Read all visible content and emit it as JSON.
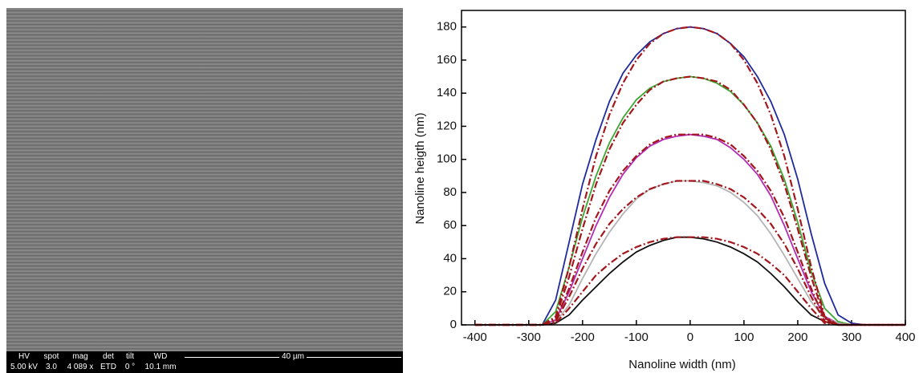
{
  "chart_data": {
    "type": "line",
    "x": [
      -400,
      -375,
      -350,
      -325,
      -300,
      -275,
      -250,
      -225,
      -200,
      -175,
      -150,
      -125,
      -100,
      -75,
      -50,
      -25,
      0,
      25,
      50,
      75,
      100,
      125,
      150,
      175,
      200,
      225,
      250,
      275,
      300,
      325,
      350,
      375,
      400
    ],
    "series": [
      {
        "color": "#1f2a9e",
        "style": "solid",
        "values": [
          0,
          0,
          0,
          0,
          0,
          0,
          15,
          50,
          85,
          112,
          135,
          152,
          163,
          171,
          176,
          179,
          180,
          179,
          176,
          170,
          162,
          150,
          135,
          115,
          88,
          55,
          25,
          6,
          1,
          0,
          0,
          0,
          0
        ]
      },
      {
        "color": "#3aa832",
        "style": "solid",
        "values": [
          0,
          0,
          0,
          0,
          0,
          0,
          8,
          35,
          65,
          90,
          110,
          125,
          136,
          143,
          147,
          149,
          150,
          149,
          146,
          141,
          133,
          122,
          108,
          88,
          62,
          32,
          10,
          2,
          0,
          0,
          0,
          0,
          0
        ]
      },
      {
        "color": "#b42cb4",
        "style": "solid",
        "values": [
          0,
          0,
          0,
          0,
          0,
          0,
          3,
          20,
          40,
          60,
          77,
          91,
          101,
          108,
          112,
          114,
          115,
          114,
          112,
          107,
          100,
          91,
          78,
          60,
          40,
          20,
          5,
          1,
          0,
          0,
          0,
          0,
          0
        ]
      },
      {
        "color": "#b4b4b4",
        "style": "solid",
        "values": [
          0,
          0,
          0,
          0,
          0,
          0,
          2,
          12,
          28,
          43,
          56,
          67,
          76,
          82,
          85,
          87,
          87,
          86,
          84,
          80,
          74,
          66,
          55,
          42,
          28,
          14,
          4,
          1,
          0,
          0,
          0,
          0,
          0
        ]
      },
      {
        "color": "#111111",
        "style": "solid",
        "values": [
          0,
          0,
          0,
          0,
          0,
          0,
          1,
          6,
          15,
          23,
          31,
          38,
          44,
          48,
          51,
          53,
          53,
          52,
          50,
          47,
          43,
          38,
          31,
          23,
          14,
          6,
          2,
          0,
          0,
          0,
          0,
          0,
          0
        ]
      },
      {
        "color": "#a3161b",
        "style": "dashdot",
        "values": [
          0,
          0,
          0,
          0,
          0,
          0,
          5,
          35,
          70,
          102,
          127,
          146,
          160,
          170,
          176,
          179,
          180,
          179,
          176,
          170,
          160,
          146,
          127,
          102,
          70,
          35,
          5,
          0,
          0,
          0,
          0,
          0,
          0
        ]
      },
      {
        "color": "#a3161b",
        "style": "dashdot",
        "values": [
          0,
          0,
          0,
          0,
          0,
          0,
          4,
          29,
          58,
          85,
          106,
          122,
          133,
          142,
          147,
          149,
          150,
          149,
          147,
          142,
          133,
          122,
          106,
          85,
          58,
          29,
          4,
          0,
          0,
          0,
          0,
          0,
          0
        ]
      },
      {
        "color": "#a3161b",
        "style": "dashdot",
        "values": [
          0,
          0,
          0,
          0,
          0,
          0,
          3,
          22,
          44,
          65,
          81,
          93,
          102,
          109,
          113,
          115,
          115,
          115,
          113,
          109,
          102,
          93,
          81,
          65,
          44,
          22,
          3,
          0,
          0,
          0,
          0,
          0,
          0
        ]
      },
      {
        "color": "#a3161b",
        "style": "dashdot",
        "values": [
          0,
          0,
          0,
          0,
          0,
          0,
          2,
          17,
          34,
          49,
          61,
          70,
          77,
          82,
          85,
          87,
          87,
          87,
          85,
          82,
          77,
          70,
          61,
          49,
          34,
          17,
          2,
          0,
          0,
          0,
          0,
          0,
          0
        ]
      },
      {
        "color": "#a3161b",
        "style": "dashdot",
        "values": [
          0,
          0,
          0,
          0,
          0,
          0,
          1,
          10,
          20,
          30,
          37,
          43,
          47,
          50,
          52,
          53,
          53,
          53,
          52,
          50,
          47,
          43,
          37,
          30,
          20,
          10,
          1,
          0,
          0,
          0,
          0,
          0,
          0
        ]
      }
    ],
    "x_label": "Nanoline width (nm)",
    "y_label": "Nanoline heigth (nm)",
    "xlim": [
      -425,
      400
    ],
    "xticks": [
      -400,
      -300,
      -200,
      -100,
      0,
      100,
      200,
      300,
      400
    ],
    "ylim": [
      0,
      190
    ],
    "yticks": [
      0,
      20,
      40,
      60,
      80,
      100,
      120,
      140,
      160,
      180
    ]
  },
  "sem_info": {
    "headers": [
      "HV",
      "spot",
      "mag",
      "det",
      "tilt",
      "WD"
    ],
    "values": [
      "5.00 kV",
      "3.0",
      "4 089 x",
      "ETD",
      "0 °",
      "10.1 mm"
    ],
    "scale_bar": "40 µm"
  }
}
